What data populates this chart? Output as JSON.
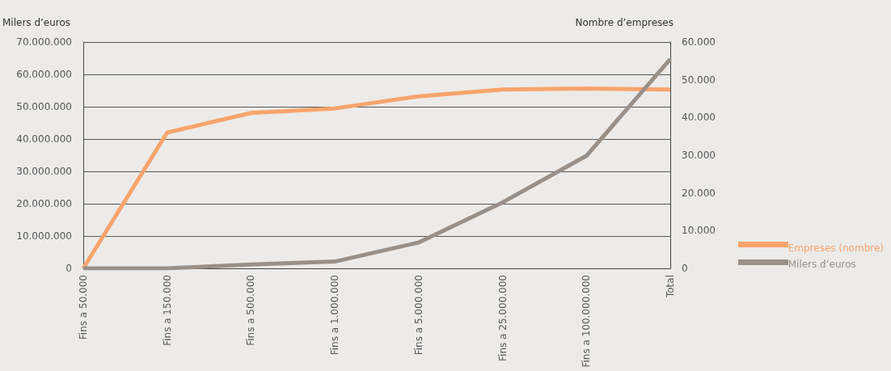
{
  "chart_data": {
    "type": "line",
    "ylabel": "Milers d’euros",
    "y2label": "Nombre d’empreses",
    "categories": [
      "Fins a 50.000",
      "Fins a 150.000",
      "Fins a 500.000",
      "Fins a 1.000.000",
      "Fins a 5.000.000",
      "Fins a 25.000.000",
      "Fins a 100.000.000",
      "Total"
    ],
    "series": [
      {
        "name": "Empreses (nombre)",
        "color": "#f8a46c",
        "axis": "y2",
        "values": [
          0,
          36000,
          41200,
          42400,
          45600,
          47400,
          47700,
          47400
        ]
      },
      {
        "name": "Milers d’euros",
        "color": "#989089",
        "values": [
          0,
          0,
          1200000,
          2100000,
          8000000,
          20400000,
          34800000,
          64700000
        ]
      }
    ],
    "ylim": [
      0,
      70000000
    ],
    "yticks": [
      0,
      {
        "value": 10000000,
        "label": "10.000.000"
      },
      {
        "value": 20000000,
        "label": "20.000.000"
      },
      {
        "value": 30000000,
        "label": "30.000.000"
      },
      {
        "value": 40000000,
        "label": "40.000.000"
      },
      {
        "value": 50000000,
        "label": "50.000.000"
      },
      {
        "value": 60000000,
        "label": "60.000.000"
      },
      {
        "value": 70000000,
        "label": "70.000.000"
      }
    ],
    "y2lim": [
      0,
      60000
    ],
    "y2ticks": [
      0,
      {
        "value": 10000,
        "label": "10.000"
      },
      {
        "value": 20000,
        "label": "20.000"
      },
      {
        "value": 30000,
        "label": "30.000"
      },
      {
        "value": 40000,
        "label": "40.000"
      },
      {
        "value": 50000,
        "label": "50.000"
      },
      {
        "value": 60000,
        "label": "60.000"
      }
    ],
    "grid": "y",
    "legend": "bottom right",
    "marker": "none",
    "line_style": "solid"
  }
}
